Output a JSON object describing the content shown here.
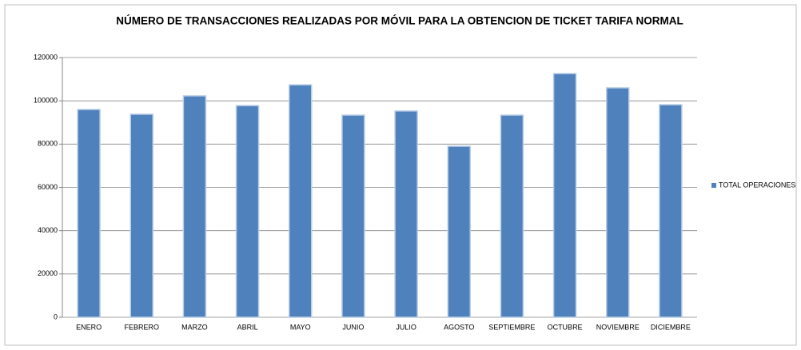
{
  "chart_data": {
    "type": "bar",
    "title": "NÚMERO DE TRANSACCIONES REALIZADAS POR MÓVIL PARA LA OBTENCION DE TICKET TARIFA NORMAL",
    "categories": [
      "ENERO",
      "FEBRERO",
      "MARZO",
      "ABRIL",
      "MAYO",
      "JUNIO",
      "JULIO",
      "AGOSTO",
      "SEPTIEMBRE",
      "OCTUBRE",
      "NOVIEMBRE",
      "DICIEMBRE"
    ],
    "series": [
      {
        "name": "TOTAL OPERACIONES",
        "color": "#4f81bd",
        "values": [
          96000,
          93800,
          102300,
          97800,
          107400,
          93400,
          95300,
          79000,
          93400,
          112600,
          106000,
          98200
        ]
      }
    ],
    "ylim": [
      0,
      120000
    ],
    "yticks": [
      0,
      20000,
      40000,
      60000,
      80000,
      100000,
      120000
    ],
    "grid": true,
    "legend": "right"
  }
}
